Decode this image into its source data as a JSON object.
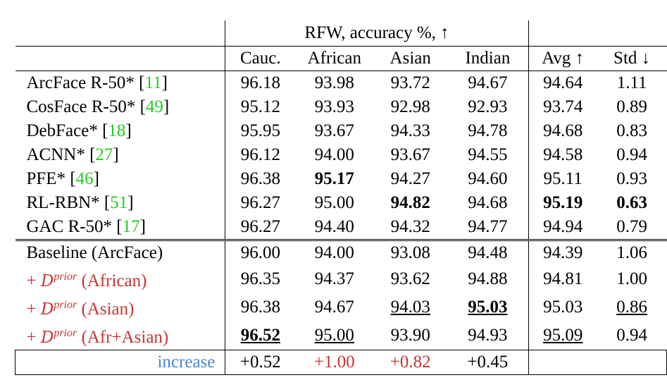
{
  "header": {
    "group": "RFW, accuracy %, ↑",
    "columns": [
      "Cauc.",
      "African",
      "Asian",
      "Indian",
      "Avg ↑",
      "Std ↓"
    ]
  },
  "prior_rows": [
    {
      "method": "ArcFace R-50* [",
      "cite": "11",
      "values": [
        "96.18",
        "93.98",
        "93.72",
        "94.67",
        "94.64",
        "1.11"
      ]
    },
    {
      "method": "CosFace R-50* [",
      "cite": "49",
      "values": [
        "95.12",
        "93.93",
        "92.98",
        "92.93",
        "93.74",
        "0.89"
      ]
    },
    {
      "method": "DebFace* [",
      "cite": "18",
      "values": [
        "95.95",
        "93.67",
        "94.33",
        "94.78",
        "94.68",
        "0.83"
      ]
    },
    {
      "method": "ACNN* [",
      "cite": "27",
      "values": [
        "96.12",
        "94.00",
        "93.67",
        "94.55",
        "94.58",
        "0.94"
      ]
    },
    {
      "method": "PFE* [",
      "cite": "46",
      "values": [
        "96.38",
        "95.17",
        "94.27",
        "94.60",
        "95.11",
        "0.93"
      ]
    },
    {
      "method": "RL-RBN* [",
      "cite": "51",
      "values": [
        "96.27",
        "95.00",
        "94.82",
        "94.68",
        "95.19",
        "0.63"
      ]
    },
    {
      "method": "GAC R-50* [",
      "cite": "17",
      "values": [
        "96.27",
        "94.40",
        "94.32",
        "94.77",
        "94.94",
        "0.79"
      ]
    }
  ],
  "ours_rows": [
    {
      "method": "Baseline (ArcFace)",
      "values": [
        "96.00",
        "94.00",
        "93.08",
        "94.48",
        "94.39",
        "1.06"
      ]
    },
    {
      "prefix": "+ ",
      "D": "D",
      "sup": "prior",
      "suffix": " (African)",
      "values": [
        "96.35",
        "94.37",
        "93.62",
        "94.88",
        "94.81",
        "1.00"
      ]
    },
    {
      "prefix": "+ ",
      "D": "D",
      "sup": "prior",
      "suffix": " (Asian)",
      "values": [
        "96.38",
        "94.67",
        "94.03",
        "95.03",
        "95.03",
        "0.86"
      ]
    },
    {
      "prefix": "+ ",
      "D": "D",
      "sup": "prior",
      "suffix": " (Afr+Asian)",
      "values": [
        "96.52",
        "95.00",
        "93.90",
        "94.93",
        "95.09",
        "0.94"
      ]
    }
  ],
  "increase": {
    "label": "increase",
    "values": [
      "+0.52",
      "+1.00",
      "+0.82",
      "+0.45"
    ]
  },
  "colors": {
    "citation": "#22cc22",
    "method_ours": "#cc3333",
    "increase_label": "#4a86d9"
  }
}
